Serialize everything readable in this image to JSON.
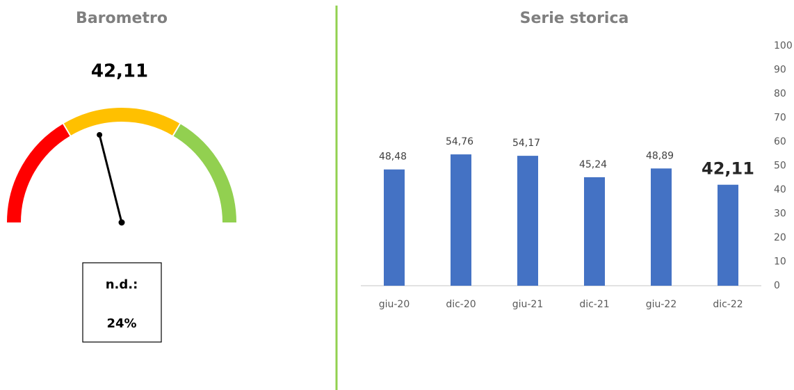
{
  "chart_data": [
    {
      "type": "gauge",
      "title": "Barometro",
      "value": 42.11,
      "value_label": "42,11",
      "range": [
        0,
        100
      ],
      "bands": [
        {
          "from": 0,
          "to": 33,
          "color": "#ff0000"
        },
        {
          "from": 33,
          "to": 67,
          "color": "#ffc000"
        },
        {
          "from": 67,
          "to": 100,
          "color": "#92d050"
        }
      ],
      "note_label": "n.d.:",
      "note_value": "24%"
    },
    {
      "type": "bar",
      "title": "Serie storica",
      "categories": [
        "giu-20",
        "dic-20",
        "giu-21",
        "dic-21",
        "giu-22",
        "dic-22"
      ],
      "values": [
        48.48,
        54.76,
        54.17,
        45.24,
        48.89,
        42.11
      ],
      "value_labels": [
        "48,48",
        "54,76",
        "54,17",
        "45,24",
        "48,89",
        "42,11"
      ],
      "color": "#4472c4",
      "ylim": [
        0,
        100
      ],
      "yticks": [
        0,
        10,
        20,
        30,
        40,
        50,
        60,
        70,
        80,
        90,
        100
      ],
      "y_axis_side": "right"
    }
  ]
}
